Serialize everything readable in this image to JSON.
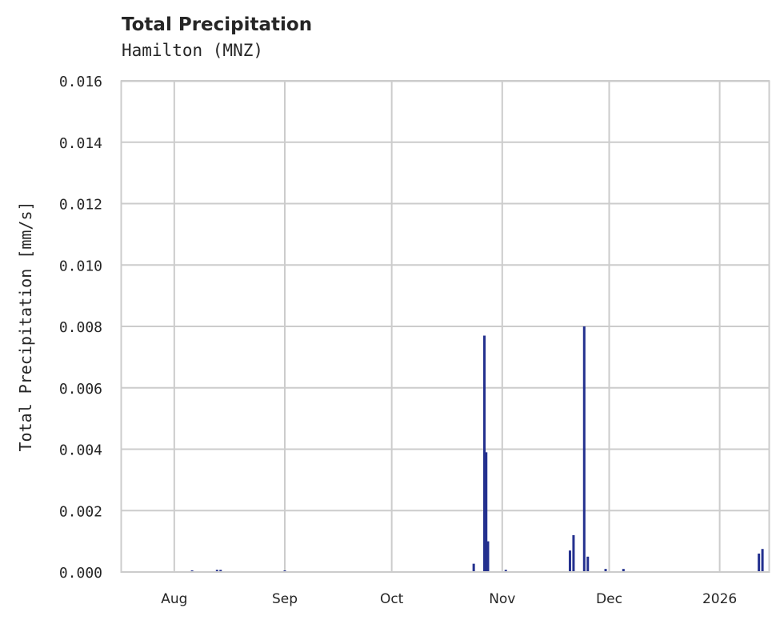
{
  "header": {
    "title": "Total Precipitation",
    "subtitle": "Hamilton (MNZ)"
  },
  "colors": {
    "series": "#24318f",
    "grid": "#cccccc",
    "axes": "#cccccc",
    "text": "#262626"
  },
  "chart_data": {
    "type": "bar",
    "title": "Total Precipitation",
    "subtitle": "Hamilton (MNZ)",
    "xlabel": "",
    "ylabel": "Total Precipitation [mm/s]",
    "ylim": [
      0,
      0.016
    ],
    "yticks": [
      "0.000",
      "0.002",
      "0.004",
      "0.006",
      "0.008",
      "0.010",
      "0.012",
      "0.014",
      "0.016"
    ],
    "xticks": [
      "Aug",
      "Sep",
      "Oct",
      "Nov",
      "Dec",
      "2026"
    ],
    "xrange": [
      "2025-07-17",
      "2026-01-15"
    ],
    "grid": true,
    "legend": null,
    "series": [
      {
        "name": "Total Precipitation",
        "x": [
          "2025-08-06",
          "2025-08-13",
          "2025-08-14",
          "2025-09-01",
          "2025-10-24",
          "2025-10-27",
          "2025-10-27T12",
          "2025-10-28",
          "2025-11-02",
          "2025-11-20",
          "2025-11-21",
          "2025-11-24",
          "2025-11-25",
          "2025-11-30",
          "2025-12-05",
          "2026-01-12",
          "2026-01-13"
        ],
        "values": [
          5e-05,
          7e-05,
          7e-05,
          5e-05,
          0.00027,
          0.0077,
          0.0039,
          0.001,
          7e-05,
          0.0007,
          0.0012,
          0.008,
          0.0005,
          0.0001,
          0.0001,
          0.0006,
          0.00075
        ]
      }
    ]
  }
}
